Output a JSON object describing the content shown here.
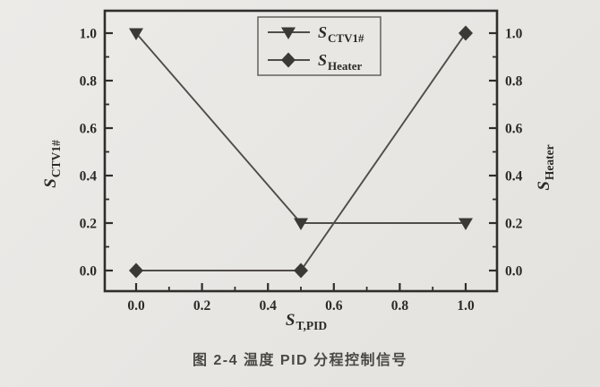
{
  "figure": {
    "caption": "图 2-4  温度 PID 分程控制信号"
  },
  "chart_data": {
    "type": "line",
    "title": "",
    "x": [
      0.0,
      0.5,
      1.0
    ],
    "series": [
      {
        "name": "S_CTV1#",
        "label_main": "S",
        "label_sub": "CTV1#",
        "marker": "triangle-down",
        "axis": "left",
        "y": [
          1.0,
          0.2,
          0.2
        ]
      },
      {
        "name": "S_Heater",
        "label_main": "S",
        "label_sub": "Heater",
        "marker": "diamond",
        "axis": "right",
        "y": [
          0.0,
          0.0,
          1.0
        ]
      }
    ],
    "xlabel": {
      "main": "S",
      "sub": "T,PID"
    },
    "ylabel_left": {
      "main": "S",
      "sub": "CTV1#"
    },
    "ylabel_right": {
      "main": "S",
      "sub": "Heater"
    },
    "xlim": [
      -0.1,
      1.1
    ],
    "ylim": [
      -0.085,
      1.095
    ],
    "x_ticks": [
      "0.0",
      "0.2",
      "0.4",
      "0.6",
      "0.8",
      "1.0"
    ],
    "y_ticks_left": [
      "0.0",
      "0.2",
      "0.4",
      "0.6",
      "0.8",
      "1.0"
    ],
    "y_ticks_right": [
      "0.0",
      "0.2",
      "0.4",
      "0.6",
      "0.8",
      "1.0"
    ],
    "minor_ticks": [
      0.1,
      0.3,
      0.5,
      0.7,
      0.9
    ],
    "grid": false,
    "legend_position": "top-center",
    "colors": {
      "line": "#4f4c49",
      "marker": "#3b3936",
      "frame": "#302e2c",
      "text": "#2b2a28",
      "paper": "#e9e7e4",
      "legend_border": "#5a5855"
    }
  }
}
